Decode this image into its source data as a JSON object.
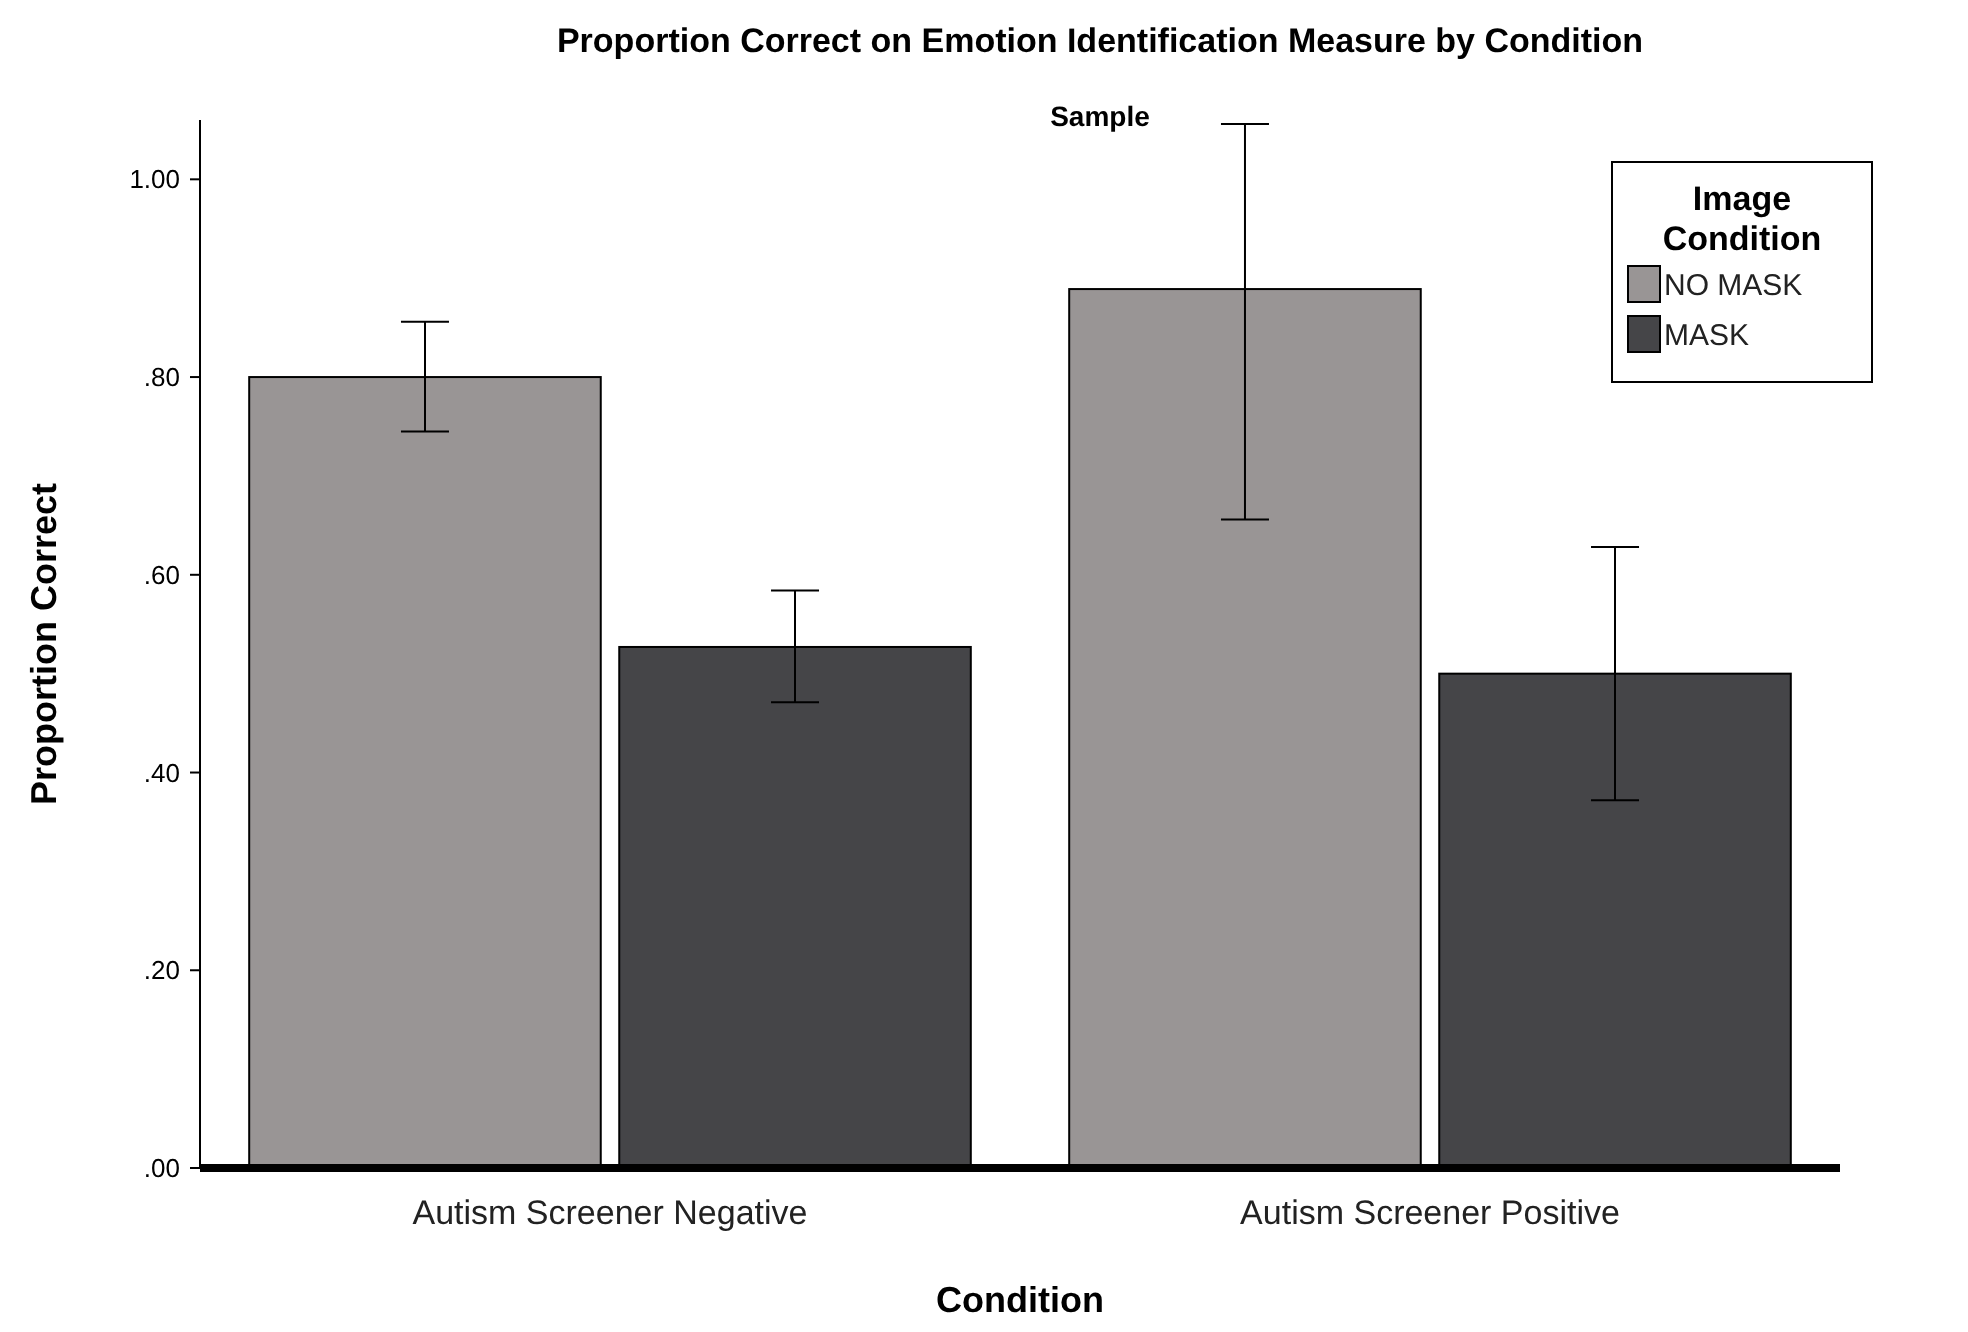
{
  "chart_data": {
    "type": "bar",
    "title": "Proportion Correct on Emotion Identification Measure by Condition",
    "subtitle": "Sample",
    "xlabel": "Condition",
    "ylabel": "Proportion Correct",
    "legend_title": "Image Condition",
    "categories": [
      "Autism Screener Negative",
      "Autism Screener Positive"
    ],
    "series": [
      {
        "name": "NO MASK",
        "color": "#999595",
        "values": [
          0.8,
          0.889
        ],
        "errors": [
          [
            0.745,
            0.856
          ],
          [
            0.656,
            1.056
          ]
        ]
      },
      {
        "name": "MASK",
        "color": "#454548",
        "values": [
          0.527,
          0.5
        ],
        "errors": [
          [
            0.471,
            0.584
          ],
          [
            0.372,
            0.628
          ]
        ]
      }
    ],
    "ylim": [
      0,
      1.06
    ],
    "yticks": [
      {
        "value": 0,
        "label": ".00"
      },
      {
        "value": 0.2,
        "label": ".20"
      },
      {
        "value": 0.4,
        "label": ".40"
      },
      {
        "value": 0.6,
        "label": ".60"
      },
      {
        "value": 0.8,
        "label": ".80"
      },
      {
        "value": 1,
        "label": "1.00"
      }
    ],
    "grid": false,
    "legend": "top right"
  }
}
